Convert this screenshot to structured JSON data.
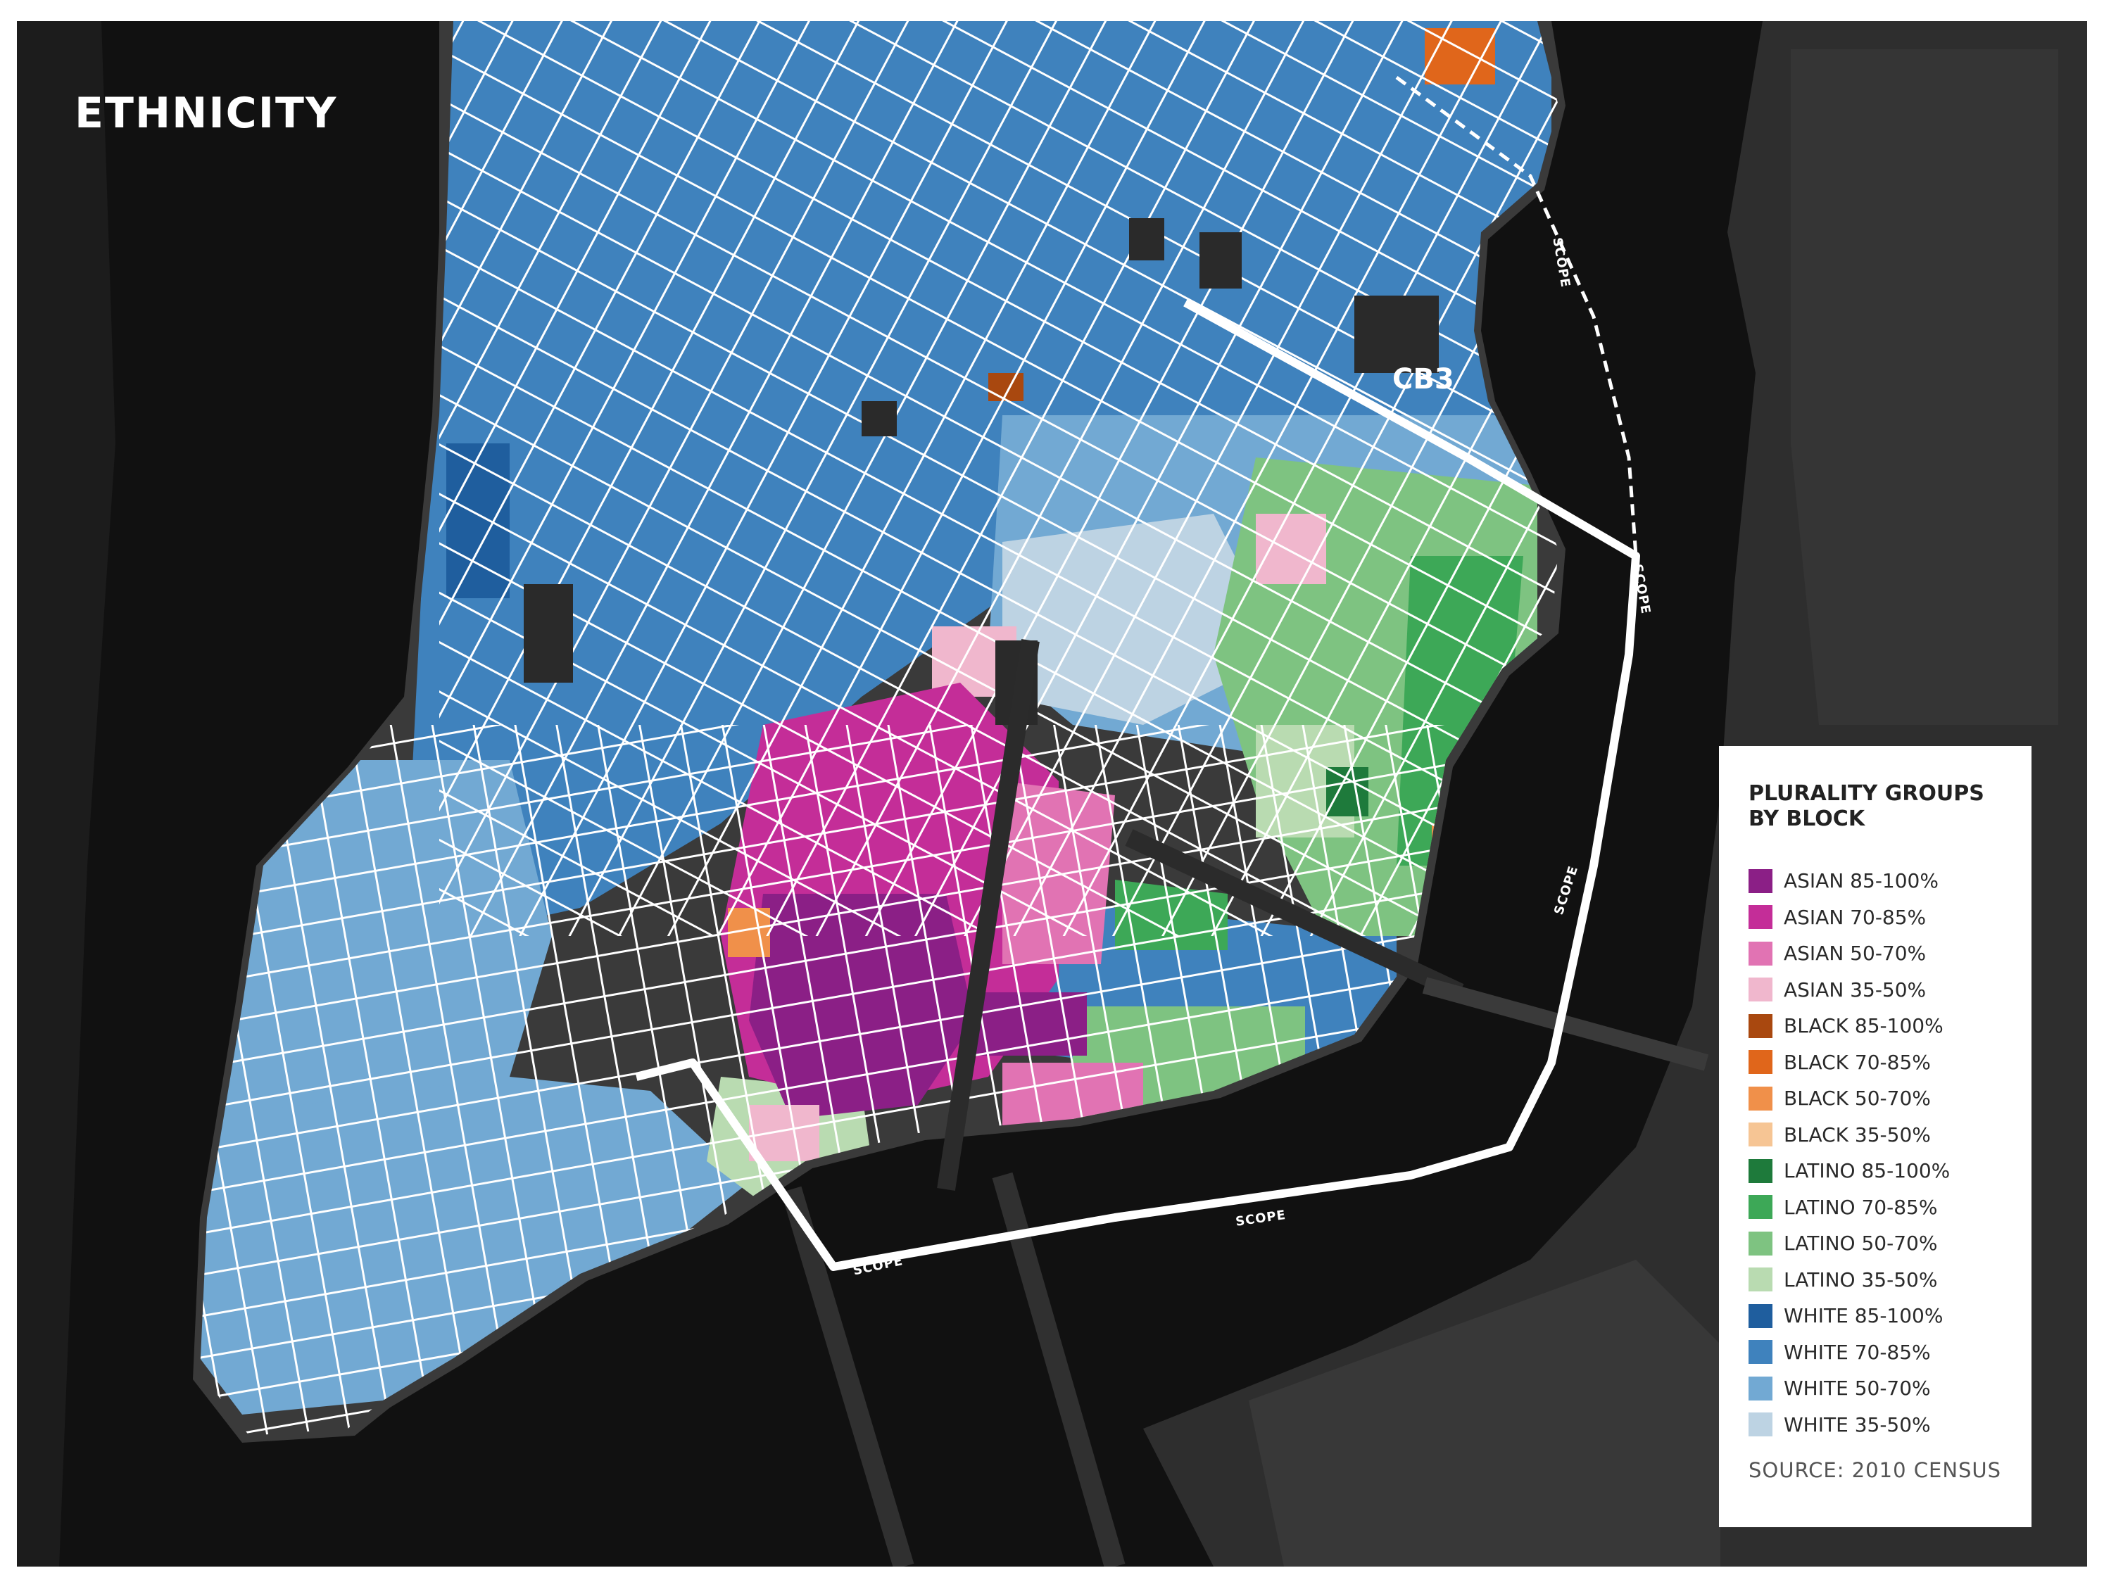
{
  "map": {
    "title": "ETHNICITY",
    "district_label": "CB3",
    "boundary_label": "SCOPE"
  },
  "legend": {
    "title": "PLURALITY GROUPS BY BLOCK",
    "items": [
      {
        "label": "ASIAN 85-100%",
        "color": "#8b1f86"
      },
      {
        "label": "ASIAN 70-85%",
        "color": "#c42d98"
      },
      {
        "label": "ASIAN 50-70%",
        "color": "#e173b3"
      },
      {
        "label": "ASIAN 35-50%",
        "color": "#f0b7cd"
      },
      {
        "label": "BLACK 85-100%",
        "color": "#a9480f"
      },
      {
        "label": "BLACK 70-85%",
        "color": "#e0661b"
      },
      {
        "label": "BLACK 50-70%",
        "color": "#f0904a"
      },
      {
        "label": "BLACK 35-50%",
        "color": "#f6c594"
      },
      {
        "label": "LATINO 85-100%",
        "color": "#1e7a3b"
      },
      {
        "label": "LATINO 70-85%",
        "color": "#3da857"
      },
      {
        "label": "LATINO 50-70%",
        "color": "#7ec381"
      },
      {
        "label": "LATINO 35-50%",
        "color": "#b9dbb1"
      },
      {
        "label": "WHITE 85-100%",
        "color": "#1f5e9e"
      },
      {
        "label": "WHITE 70-85%",
        "color": "#3f82bd"
      },
      {
        "label": "WHITE 50-70%",
        "color": "#72a9d3"
      },
      {
        "label": "WHITE 35-50%",
        "color": "#bdd3e3"
      }
    ],
    "source": "SOURCE: 2010 CENSUS"
  }
}
